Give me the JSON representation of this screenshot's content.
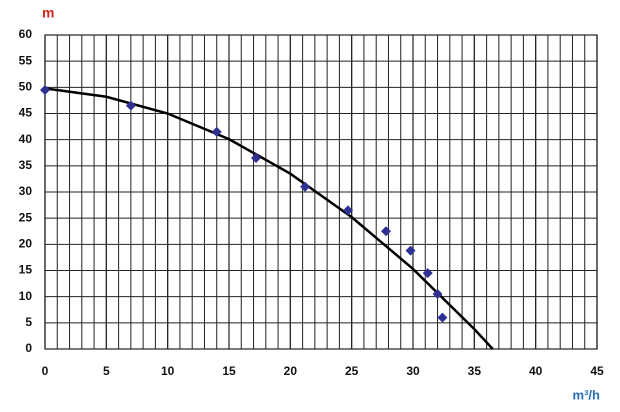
{
  "chart_data": {
    "type": "scatter",
    "y_unit": "m",
    "x_unit": "m³/h",
    "xlim": [
      0,
      45
    ],
    "ylim": [
      0,
      60
    ],
    "xticks": [
      0,
      5,
      10,
      15,
      20,
      25,
      30,
      35,
      40,
      45
    ],
    "yticks": [
      0,
      5,
      10,
      15,
      20,
      25,
      30,
      35,
      40,
      45,
      50,
      55,
      60
    ],
    "grid": true,
    "series": [
      {
        "type": "line",
        "color": "#000000",
        "x": [
          0,
          5,
          10,
          15,
          20,
          25,
          30,
          35,
          36.5
        ],
        "values": [
          49.8,
          48.2,
          45.0,
          40.1,
          33.5,
          25.2,
          15.3,
          3.8,
          0
        ]
      },
      {
        "type": "scatter",
        "color": "#2e3192",
        "x": [
          0,
          7,
          14,
          17.2,
          21.2,
          24.7,
          27.8,
          29.8,
          31.2,
          32,
          32.4
        ],
        "values": [
          49.5,
          46.5,
          41.5,
          36.5,
          31,
          26.5,
          22.5,
          18.8,
          14.5,
          10.5,
          6
        ]
      }
    ]
  }
}
